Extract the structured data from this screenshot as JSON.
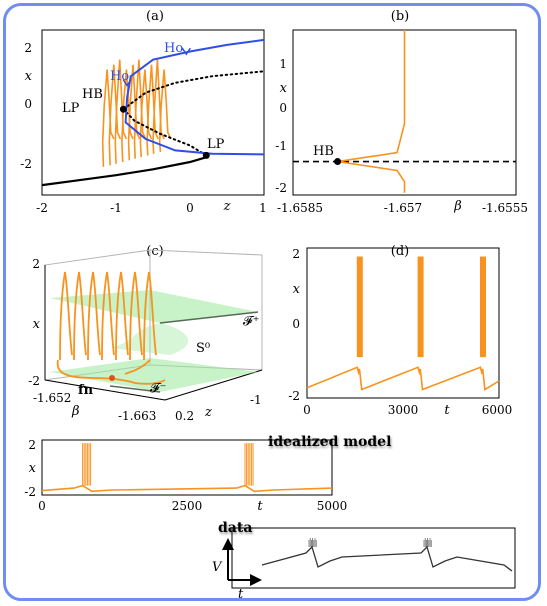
{
  "colors": {
    "orange": "#f7931e",
    "blue": "#2e4ee8",
    "black": "#000000",
    "green": "#9be79b",
    "frame": "#6f8ff0",
    "data_gray": "#333333"
  },
  "chart_data": [
    {
      "id": "a",
      "type": "line",
      "panel_label": "(a)",
      "xlabel": "z",
      "ylabel": "x",
      "xlim": [
        -2,
        1
      ],
      "ylim": [
        -2.6,
        2.4
      ],
      "x_ticks": [
        "-2",
        "-1",
        "0",
        "1"
      ],
      "y_ticks": [
        "2",
        "0",
        "-2"
      ],
      "annotations": [
        "HB",
        "LP",
        "LP",
        "Ho",
        "Ho"
      ],
      "series": [
        {
          "role": "lower stable branch",
          "style": "solid-black",
          "points": [
            [
              -2,
              -2.3
            ],
            [
              -1.5,
              -2.15
            ],
            [
              -1,
              -2.0
            ],
            [
              -0.5,
              -1.82
            ],
            [
              0,
              -1.6
            ],
            [
              0.2,
              -1.47
            ],
            [
              0.22,
              -1.4
            ]
          ]
        },
        {
          "role": "middle unstable branch",
          "style": "dotted-black",
          "points": [
            [
              0.22,
              -1.4
            ],
            [
              0.0,
              -1.1
            ],
            [
              -0.4,
              -0.75
            ],
            [
              -0.75,
              -0.35
            ],
            [
              -0.9,
              0.0
            ]
          ]
        },
        {
          "role": "upper branch unstable",
          "style": "dotted-black",
          "points": [
            [
              -0.9,
              0.0
            ],
            [
              -0.6,
              0.5
            ],
            [
              -0.2,
              0.8
            ],
            [
              0.3,
              1.0
            ],
            [
              1,
              1.15
            ]
          ]
        },
        {
          "role": "periodic max",
          "style": "solid-blue",
          "points": [
            [
              -0.85,
              0.35
            ],
            [
              -0.8,
              1.0
            ],
            [
              -0.5,
              1.5
            ],
            [
              0,
              1.75
            ],
            [
              0.5,
              1.95
            ],
            [
              1,
              2.1
            ]
          ]
        },
        {
          "role": "periodic min",
          "style": "solid-blue",
          "points": [
            [
              -0.85,
              0.35
            ],
            [
              -0.87,
              -0.4
            ],
            [
              -0.6,
              -0.9
            ],
            [
              -0.2,
              -1.25
            ],
            [
              0.3,
              -1.35
            ],
            [
              1,
              -1.37
            ]
          ]
        }
      ],
      "spike_z": [
        -1.12,
        -1.03,
        -0.95,
        -0.86,
        -0.77,
        -0.69,
        -0.61,
        -0.52,
        -0.44,
        -0.35
      ]
    },
    {
      "id": "b",
      "type": "line",
      "panel_label": "(b)",
      "xlabel": "β",
      "ylabel": "x",
      "xlim": [
        -1.6585,
        -1.6555
      ],
      "ylim": [
        -2.1,
        1.6
      ],
      "x_ticks": [
        "-1.6585",
        "-1.657",
        "-1.6555"
      ],
      "y_ticks": [
        "1",
        "0",
        "-1",
        "-2"
      ],
      "annotations": [
        "HB"
      ],
      "series": [
        {
          "role": "equilibrium",
          "style": "dashed-black",
          "points": [
            [
              -1.6585,
              -1.35
            ],
            [
              -1.6555,
              -1.35
            ]
          ]
        },
        {
          "role": "canard max",
          "style": "solid-orange",
          "points": [
            [
              -1.6579,
              -1.35
            ],
            [
              -1.6575,
              -1.25
            ],
            [
              -1.6571,
              -1.15
            ],
            [
              -1.657,
              -0.5
            ],
            [
              -1.657,
              1.6
            ]
          ]
        },
        {
          "role": "canard min",
          "style": "solid-orange",
          "points": [
            [
              -1.6579,
              -1.35
            ],
            [
              -1.6575,
              -1.45
            ],
            [
              -1.6571,
              -1.55
            ],
            [
              -1.657,
              -1.8
            ],
            [
              -1.657,
              -2.05
            ]
          ]
        }
      ]
    },
    {
      "id": "c",
      "type": "line",
      "panel_label": "(c)",
      "xlabel": "z",
      "ylabel": "x",
      "zlabel": "β",
      "y_ticks": [
        "2",
        "x",
        "-2"
      ],
      "beta_ticks": [
        "-1.652",
        "-1.663"
      ],
      "z_ticks": [
        "0.2",
        "-1"
      ],
      "surface_labels": [
        "𝓕⁺",
        "S⁰",
        "𝓕⁻"
      ],
      "point_label": "fn"
    },
    {
      "id": "d",
      "type": "line",
      "panel_label": "(d)",
      "xlabel": "t",
      "ylabel": "x",
      "xlim": [
        0,
        6000
      ],
      "ylim": [
        -2.2,
        2.2
      ],
      "x_ticks": [
        "0",
        "3000",
        "6000"
      ],
      "y_ticks": [
        "2",
        "0",
        "-2"
      ],
      "burst_t": [
        1650,
        3550,
        5500
      ],
      "baseline_min": -1.9,
      "baseline_max": -1.3
    },
    {
      "id": "e",
      "type": "line",
      "title": "idealized model",
      "xlabel": "t",
      "ylabel": "x",
      "xlim": [
        0,
        5000
      ],
      "ylim": [
        -2.2,
        2.2
      ],
      "x_ticks": [
        "0",
        "2500",
        "5000"
      ],
      "y_ticks": [
        "2",
        "x",
        "-2"
      ],
      "burst_t": [
        700,
        3500
      ]
    },
    {
      "id": "f",
      "type": "line",
      "title": "data",
      "xlabel": "t",
      "ylabel": "V",
      "burst_frac": [
        0.2,
        0.66
      ]
    }
  ]
}
